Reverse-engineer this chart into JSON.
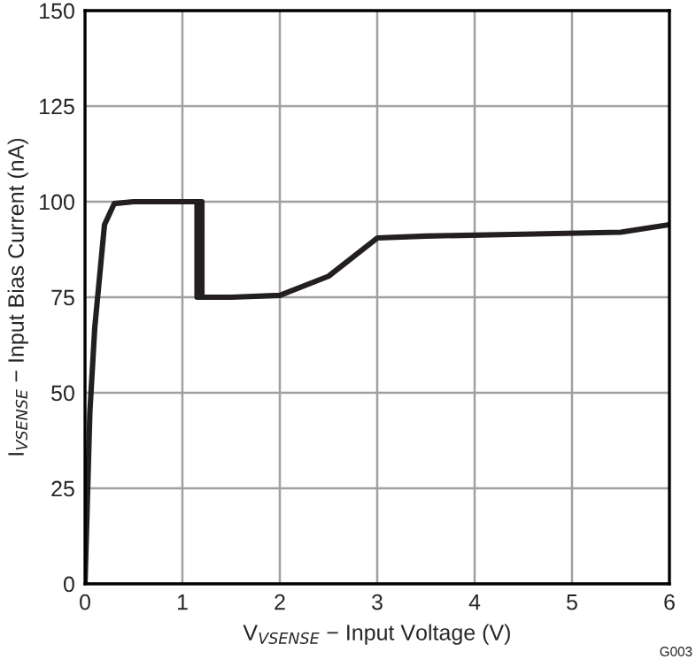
{
  "chart_data": {
    "type": "line",
    "xlabel": "V$_{VSENSE}$ − Input Voltage (V)",
    "ylabel": "I$_{VSENSE}$ − Input Bias Current (nA)",
    "annotations": [
      "G003"
    ],
    "series": [
      {
        "color": "#231f20",
        "x": [
          0,
          0.05,
          0.1,
          0.2,
          0.3,
          0.5,
          1.0,
          1.2,
          1.2,
          1.5,
          2.0,
          2.5,
          3.0,
          3.5,
          4.5,
          5.5,
          6.0
        ],
        "values": [
          0,
          45,
          67,
          94,
          99.5,
          100,
          100,
          100,
          75,
          75,
          75.5,
          80.5,
          90.5,
          91,
          91.5,
          92,
          94
        ]
      },
      {
        "color": "#231f20",
        "x": [
          1.15,
          1.15,
          1.2
        ],
        "values": [
          100,
          75,
          75
        ]
      }
    ],
    "xlim": [
      0,
      6
    ],
    "ylim": [
      0,
      150
    ],
    "xticks": [
      0,
      1,
      2,
      3,
      4,
      5,
      6
    ],
    "yticks": [
      0,
      25,
      50,
      75,
      100,
      125,
      150
    ],
    "grid": true,
    "marker": "none",
    "line_style": "solid"
  }
}
